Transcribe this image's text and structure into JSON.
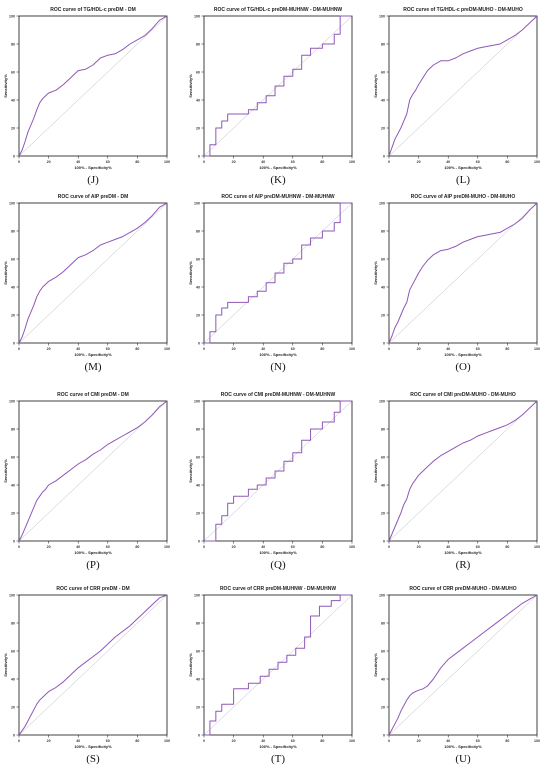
{
  "colors": {
    "roc_line": "#8e58b8",
    "reference_line": "#b9b9b9",
    "axis": "#111111"
  },
  "chart_data": [
    {
      "panel": "(J)",
      "type": "line",
      "title": "ROC curve of TG/HDL-c preDM - DM",
      "xlabel": "100% - Specificity%",
      "ylabel": "Sensitivity%",
      "xlim": [
        0,
        100
      ],
      "ylim": [
        0,
        100
      ],
      "xticks": [
        0,
        20,
        40,
        60,
        80,
        100
      ],
      "yticks": [
        0,
        20,
        40,
        60,
        80,
        100
      ],
      "grid": false,
      "series": [
        {
          "x": [
            0,
            2,
            4,
            6,
            8,
            10,
            12,
            14,
            16,
            18,
            20,
            25,
            30,
            35,
            40,
            45,
            50,
            55,
            60,
            65,
            70,
            75,
            80,
            85,
            90,
            95,
            100
          ],
          "y": [
            0,
            4,
            10,
            17,
            22,
            27,
            33,
            38,
            41,
            43,
            45,
            47,
            51,
            56,
            61,
            62,
            65,
            70,
            72,
            73,
            76,
            80,
            83,
            86,
            91,
            97,
            100
          ]
        }
      ]
    },
    {
      "panel": "(K)",
      "type": "line",
      "title": "ROC curve of TG/HDL-c preDM-MUHNW - DM-MUHNW",
      "xlabel": "100% - Specificity%",
      "ylabel": "Sensitivity%",
      "xlim": [
        0,
        100
      ],
      "ylim": [
        0,
        100
      ],
      "xticks": [
        0,
        20,
        40,
        60,
        80,
        100
      ],
      "yticks": [
        0,
        20,
        40,
        60,
        80,
        100
      ],
      "grid": false,
      "series": [
        {
          "x": [
            0,
            4,
            4,
            8,
            8,
            12,
            12,
            16,
            16,
            30,
            30,
            36,
            36,
            42,
            42,
            48,
            48,
            54,
            54,
            60,
            60,
            66,
            66,
            72,
            72,
            80,
            80,
            88,
            88,
            92,
            92,
            100
          ],
          "y": [
            0,
            0,
            8,
            8,
            20,
            20,
            25,
            25,
            30,
            30,
            33,
            33,
            38,
            38,
            43,
            43,
            50,
            50,
            57,
            57,
            62,
            62,
            72,
            72,
            77,
            77,
            80,
            80,
            87,
            87,
            100,
            100
          ]
        }
      ]
    },
    {
      "panel": "(L)",
      "type": "line",
      "title": "ROC curve of TG/HDL-c preDM-MUHO - DM-MUHO",
      "xlabel": "100% - Specificity%",
      "ylabel": "Sensitivity%",
      "xlim": [
        0,
        100
      ],
      "ylim": [
        0,
        100
      ],
      "xticks": [
        0,
        20,
        40,
        60,
        80,
        100
      ],
      "yticks": [
        0,
        20,
        40,
        60,
        80,
        100
      ],
      "grid": false,
      "series": [
        {
          "x": [
            0,
            2,
            4,
            6,
            8,
            10,
            12,
            14,
            16,
            18,
            20,
            23,
            26,
            30,
            35,
            40,
            45,
            50,
            55,
            60,
            65,
            70,
            75,
            80,
            85,
            90,
            95,
            100
          ],
          "y": [
            0,
            6,
            12,
            16,
            20,
            25,
            30,
            40,
            44,
            47,
            51,
            56,
            61,
            65,
            68,
            68,
            70,
            73,
            75,
            77,
            78,
            79,
            80,
            83,
            86,
            90,
            95,
            100
          ]
        }
      ]
    },
    {
      "panel": "(M)",
      "type": "line",
      "title": "ROC curve of AIP preDM - DM",
      "xlabel": "100% - Specificity%",
      "ylabel": "Sensitivity%",
      "xlim": [
        0,
        100
      ],
      "ylim": [
        0,
        100
      ],
      "xticks": [
        0,
        20,
        40,
        60,
        80,
        100
      ],
      "yticks": [
        0,
        20,
        40,
        60,
        80,
        100
      ],
      "grid": false,
      "series": [
        {
          "x": [
            0,
            2,
            4,
            6,
            8,
            10,
            12,
            14,
            16,
            18,
            20,
            25,
            30,
            35,
            40,
            45,
            50,
            55,
            60,
            65,
            70,
            75,
            80,
            85,
            90,
            95,
            100
          ],
          "y": [
            0,
            4,
            10,
            17,
            22,
            27,
            33,
            37,
            40,
            42,
            44,
            47,
            51,
            56,
            61,
            63,
            66,
            70,
            72,
            74,
            76,
            79,
            82,
            86,
            91,
            97,
            100
          ]
        }
      ]
    },
    {
      "panel": "(N)",
      "type": "line",
      "title": "ROC curve of AIP preDM-MUHNW - DM-MUHNW",
      "xlabel": "100% - Specificity%",
      "ylabel": "Sensitivity%",
      "xlim": [
        0,
        100
      ],
      "ylim": [
        0,
        100
      ],
      "xticks": [
        0,
        20,
        40,
        60,
        80,
        100
      ],
      "yticks": [
        0,
        20,
        40,
        60,
        80,
        100
      ],
      "grid": false,
      "series": [
        {
          "x": [
            0,
            4,
            4,
            8,
            8,
            12,
            12,
            16,
            16,
            30,
            30,
            36,
            36,
            42,
            42,
            48,
            48,
            54,
            54,
            60,
            60,
            66,
            66,
            72,
            72,
            80,
            80,
            88,
            88,
            92,
            92,
            100
          ],
          "y": [
            0,
            0,
            8,
            8,
            20,
            20,
            25,
            25,
            29,
            29,
            33,
            33,
            37,
            37,
            43,
            43,
            50,
            50,
            57,
            57,
            60,
            60,
            70,
            70,
            75,
            75,
            80,
            80,
            86,
            86,
            100,
            100
          ]
        }
      ]
    },
    {
      "panel": "(O)",
      "type": "line",
      "title": "ROC curve of AIP preDM-MUHO - DM-MUHO",
      "xlabel": "100% - Specificity%",
      "ylabel": "Sensitivity%",
      "xlim": [
        0,
        100
      ],
      "ylim": [
        0,
        100
      ],
      "xticks": [
        0,
        20,
        40,
        60,
        80,
        100
      ],
      "yticks": [
        0,
        20,
        40,
        60,
        80,
        100
      ],
      "grid": false,
      "series": [
        {
          "x": [
            0,
            2,
            4,
            6,
            8,
            10,
            12,
            14,
            16,
            18,
            20,
            23,
            26,
            30,
            35,
            40,
            45,
            50,
            55,
            60,
            65,
            70,
            75,
            80,
            85,
            90,
            95,
            100
          ],
          "y": [
            0,
            5,
            11,
            15,
            20,
            25,
            29,
            38,
            42,
            46,
            50,
            55,
            59,
            63,
            66,
            67,
            69,
            72,
            74,
            76,
            77,
            78,
            79,
            82,
            85,
            89,
            95,
            100
          ]
        }
      ]
    },
    {
      "panel": "(P)",
      "type": "line",
      "title": "ROC curve of CMI preDM - DM",
      "xlabel": "100% - Specificity%",
      "ylabel": "Sensitivity%",
      "xlim": [
        0,
        100
      ],
      "ylim": [
        0,
        100
      ],
      "xticks": [
        0,
        20,
        40,
        60,
        80,
        100
      ],
      "yticks": [
        0,
        20,
        40,
        60,
        80,
        100
      ],
      "grid": false,
      "series": [
        {
          "x": [
            0,
            2,
            4,
            6,
            8,
            10,
            12,
            14,
            16,
            18,
            20,
            25,
            30,
            35,
            40,
            45,
            50,
            55,
            60,
            65,
            70,
            75,
            80,
            85,
            90,
            95,
            100
          ],
          "y": [
            0,
            4,
            9,
            14,
            19,
            24,
            29,
            32,
            35,
            37,
            40,
            43,
            47,
            51,
            55,
            58,
            62,
            65,
            69,
            72,
            75,
            78,
            81,
            85,
            90,
            96,
            100
          ]
        }
      ]
    },
    {
      "panel": "(Q)",
      "type": "line",
      "title": "ROC curve of CMI preDM-MUHNW - DM-MUHNW",
      "xlabel": "100% - Specificity%",
      "ylabel": "Sensitivity%",
      "xlim": [
        0,
        100
      ],
      "ylim": [
        0,
        100
      ],
      "xticks": [
        0,
        20,
        40,
        60,
        80,
        100
      ],
      "yticks": [
        0,
        20,
        40,
        60,
        80,
        100
      ],
      "grid": false,
      "series": [
        {
          "x": [
            0,
            8,
            8,
            12,
            12,
            16,
            16,
            20,
            20,
            30,
            30,
            36,
            36,
            42,
            42,
            48,
            48,
            54,
            54,
            60,
            60,
            66,
            66,
            72,
            72,
            80,
            80,
            88,
            88,
            92,
            92,
            100
          ],
          "y": [
            0,
            0,
            12,
            12,
            18,
            18,
            27,
            27,
            32,
            32,
            37,
            37,
            40,
            40,
            45,
            45,
            50,
            50,
            57,
            57,
            63,
            63,
            72,
            72,
            80,
            80,
            85,
            85,
            92,
            92,
            100,
            100
          ]
        }
      ]
    },
    {
      "panel": "(R)",
      "type": "line",
      "title": "ROC curve of CMI preDM-MUHO - DM-MUHO",
      "xlabel": "100% - Specificity%",
      "ylabel": "Sensitivity%",
      "xlim": [
        0,
        100
      ],
      "ylim": [
        0,
        100
      ],
      "xticks": [
        0,
        20,
        40,
        60,
        80,
        100
      ],
      "yticks": [
        0,
        20,
        40,
        60,
        80,
        100
      ],
      "grid": false,
      "series": [
        {
          "x": [
            0,
            2,
            4,
            6,
            8,
            10,
            12,
            14,
            16,
            18,
            20,
            23,
            26,
            30,
            35,
            40,
            45,
            50,
            55,
            60,
            65,
            70,
            75,
            80,
            85,
            90,
            95,
            100
          ],
          "y": [
            0,
            5,
            10,
            15,
            20,
            26,
            30,
            37,
            41,
            44,
            47,
            50,
            53,
            57,
            61,
            64,
            67,
            70,
            72,
            75,
            77,
            79,
            81,
            83,
            86,
            90,
            95,
            100
          ]
        }
      ]
    },
    {
      "panel": "(S)",
      "type": "line",
      "title": "ROC curve of CRR preDM - DM",
      "xlabel": "100% - Specificity%",
      "ylabel": "Sensitivity%",
      "xlim": [
        0,
        100
      ],
      "ylim": [
        0,
        100
      ],
      "xticks": [
        0,
        20,
        40,
        60,
        80,
        100
      ],
      "yticks": [
        0,
        20,
        40,
        60,
        80,
        100
      ],
      "grid": false,
      "series": [
        {
          "x": [
            0,
            2,
            4,
            6,
            8,
            10,
            12,
            14,
            16,
            18,
            20,
            25,
            30,
            35,
            40,
            45,
            50,
            55,
            60,
            65,
            70,
            75,
            80,
            85,
            90,
            95,
            100
          ],
          "y": [
            0,
            3,
            6,
            10,
            14,
            18,
            22,
            25,
            27,
            29,
            31,
            34,
            38,
            43,
            48,
            52,
            56,
            60,
            65,
            70,
            74,
            78,
            83,
            88,
            93,
            98,
            100
          ]
        }
      ]
    },
    {
      "panel": "(T)",
      "type": "line",
      "title": "ROC curve of CRR preDM-MUHNW - DM-MUHNW",
      "xlabel": "100% - Specificity%",
      "ylabel": "Sensitivity%",
      "xlim": [
        0,
        100
      ],
      "ylim": [
        0,
        100
      ],
      "xticks": [
        0,
        20,
        40,
        60,
        80,
        100
      ],
      "yticks": [
        0,
        20,
        40,
        60,
        80,
        100
      ],
      "grid": false,
      "series": [
        {
          "x": [
            0,
            4,
            4,
            8,
            8,
            12,
            12,
            20,
            20,
            30,
            30,
            38,
            38,
            44,
            44,
            50,
            50,
            56,
            56,
            62,
            62,
            68,
            68,
            72,
            72,
            78,
            78,
            86,
            86,
            92,
            92,
            100
          ],
          "y": [
            0,
            0,
            10,
            10,
            17,
            17,
            22,
            22,
            33,
            33,
            37,
            37,
            42,
            42,
            47,
            47,
            52,
            52,
            57,
            57,
            62,
            62,
            70,
            70,
            85,
            85,
            92,
            92,
            96,
            96,
            100,
            100
          ]
        }
      ]
    },
    {
      "panel": "(U)",
      "type": "line",
      "title": "ROC curve of CRR preDM-MUHO - DM-MUHO",
      "xlabel": "100% - Specificity%",
      "ylabel": "Sensitivity%",
      "xlim": [
        0,
        100
      ],
      "ylim": [
        0,
        100
      ],
      "xticks": [
        0,
        20,
        40,
        60,
        80,
        100
      ],
      "yticks": [
        0,
        20,
        40,
        60,
        80,
        100
      ],
      "grid": false,
      "series": [
        {
          "x": [
            0,
            2,
            4,
            6,
            8,
            10,
            12,
            14,
            16,
            18,
            20,
            23,
            26,
            30,
            35,
            40,
            45,
            50,
            55,
            60,
            65,
            70,
            75,
            80,
            85,
            90,
            95,
            100
          ],
          "y": [
            0,
            4,
            8,
            12,
            17,
            21,
            25,
            28,
            30,
            31,
            32,
            33,
            35,
            40,
            48,
            54,
            58,
            62,
            66,
            70,
            74,
            78,
            82,
            86,
            90,
            94,
            97,
            100
          ]
        }
      ]
    }
  ]
}
